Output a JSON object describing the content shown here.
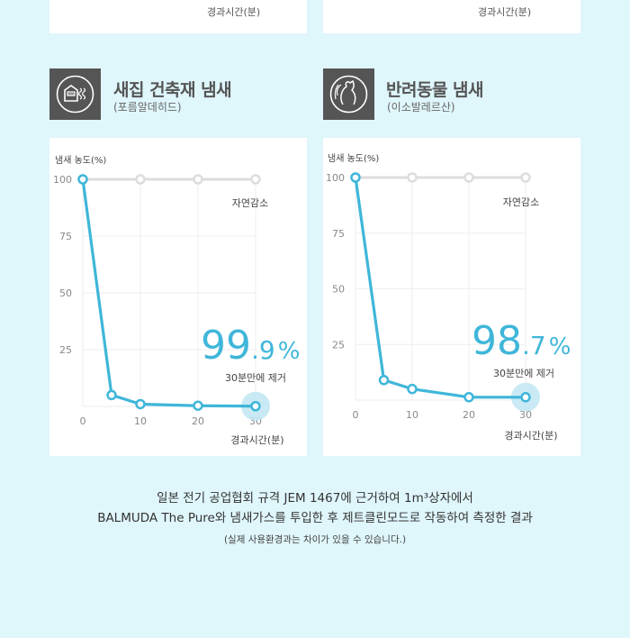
{
  "top_cards": [
    {
      "xlabel": "경과시간(분)"
    },
    {
      "xlabel": "경과시간(분)"
    }
  ],
  "sections": [
    {
      "title": "새집 건축재 냄새",
      "subtitle": "(포름알데히드)",
      "icon": "house-icon"
    },
    {
      "title": "반려동물 냄새",
      "subtitle": "(이소발레르산)",
      "icon": "pet-icon"
    }
  ],
  "chart_data": [
    {
      "type": "line",
      "title": "새집 건축재 냄새",
      "ylabel": "냄새 농도(%)",
      "xlabel": "경과시간(분)",
      "yticks": [
        "100",
        "75",
        "50",
        "25"
      ],
      "xticks": [
        "0",
        "10",
        "20",
        "30"
      ],
      "ylim": [
        0,
        100
      ],
      "xlim": [
        0,
        30
      ],
      "series": [
        {
          "name": "자연감소",
          "x": [
            0,
            10,
            20,
            30
          ],
          "y": [
            100,
            100,
            100,
            100
          ],
          "color": "#dddddd"
        },
        {
          "name": "BALMUDA The Pure",
          "x": [
            0,
            5,
            10,
            20,
            30
          ],
          "y": [
            100,
            5,
            1,
            0.3,
            0.1
          ],
          "color": "#3fb6d9"
        }
      ],
      "annotation": {
        "big": "99",
        "small": ".9",
        "unit": "%",
        "caption": "30분만에 제거"
      },
      "natural_label": "자연감소"
    },
    {
      "type": "line",
      "title": "반려동물 냄새",
      "ylabel": "냄새 농도(%)",
      "xlabel": "경과시간(분)",
      "yticks": [
        "100",
        "75",
        "50",
        "25"
      ],
      "xticks": [
        "0",
        "10",
        "20",
        "30"
      ],
      "ylim": [
        0,
        100
      ],
      "xlim": [
        0,
        30
      ],
      "series": [
        {
          "name": "자연감소",
          "x": [
            0,
            10,
            20,
            30
          ],
          "y": [
            100,
            100,
            100,
            100
          ],
          "color": "#dddddd"
        },
        {
          "name": "BALMUDA The Pure",
          "x": [
            0,
            5,
            10,
            20,
            30
          ],
          "y": [
            100,
            9,
            5,
            1.3,
            1.3
          ],
          "color": "#3fb6d9"
        }
      ],
      "annotation": {
        "big": "98",
        "small": ".7",
        "unit": "%",
        "caption": "30분만에 제거"
      },
      "natural_label": "자연감소"
    }
  ],
  "footnote": {
    "line1": "일본 전기 공업협회 규격 JEM 1467에 근거하여 1m³상자에서",
    "line2": "BALMUDA The Pure와 냄새가스를 투입한 후 제트클린모드로 작동하여 측정한 결과",
    "line3": "(실제 사용환경과는 차이가 있을 수 있습니다.)"
  },
  "colors": {
    "accent": "#3fb6d9",
    "background": "#dff6fb",
    "icon_bg": "#555555",
    "natural_line": "#dddddd"
  }
}
